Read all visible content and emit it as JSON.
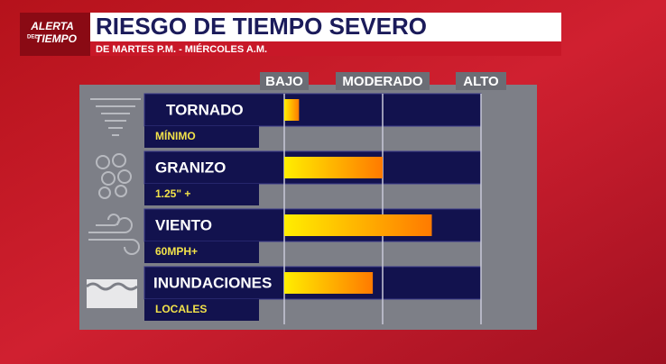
{
  "chart_data": {
    "type": "bar",
    "orientation": "horizontal",
    "logo": [
      "ALERTA",
      "DEL",
      "TIEMPO"
    ],
    "title": "RIESGO DE TIEMPO SEVERO",
    "subtitle": "DE MARTES P.M. - MIÉRCOLES A.M.",
    "categories": [
      "TORNADO",
      "GRANIZO",
      "VIENTO",
      "INUNDACIONES"
    ],
    "category_notes": [
      "MÍNIMO",
      "1.25\" +",
      "60MPH+",
      "LOCALES"
    ],
    "values": [
      0.15,
      1.0,
      1.5,
      0.9
    ],
    "xlim": [
      0,
      2
    ],
    "xticks": [
      {
        "value": 0,
        "label": "BAJO"
      },
      {
        "value": 1,
        "label": "MODERADO"
      },
      {
        "value": 2,
        "label": "ALTO"
      }
    ],
    "grid": true,
    "colors": [
      "#ffee00",
      "#ff7a00"
    ]
  }
}
